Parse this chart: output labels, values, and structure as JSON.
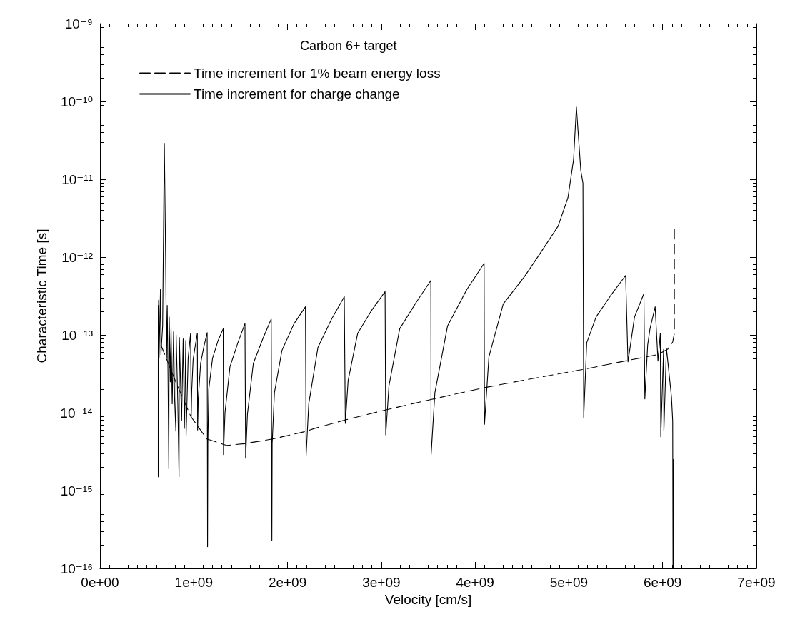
{
  "chart_data": {
    "type": "line",
    "xlabel": "Velocity [cm/s]",
    "ylabel": "Characteristic Time [s]",
    "legend_title": "Carbon 6+ target",
    "legend": "top left",
    "grid": false,
    "marker": "none",
    "log": "y",
    "xlim": [
      0,
      7000000000.0
    ],
    "xticks": [
      {
        "value": 0,
        "label": "0e+00"
      },
      {
        "value": 1000000000.0,
        "label": "1e+09"
      },
      {
        "value": 2000000000.0,
        "label": "2e+09"
      },
      {
        "value": 3000000000.0,
        "label": "3e+09"
      },
      {
        "value": 4000000000.0,
        "label": "4e+09"
      },
      {
        "value": 5000000000.0,
        "label": "5e+09"
      },
      {
        "value": 6000000000.0,
        "label": "6e+09"
      },
      {
        "value": 7000000000.0,
        "label": "7e+09"
      }
    ],
    "ylim": [
      1e-16,
      1e-09
    ],
    "yticks": [
      {
        "value": 1e-16,
        "label": "10⁻¹⁶"
      },
      {
        "value": 1e-15,
        "label": "10⁻¹⁵"
      },
      {
        "value": 1e-14,
        "label": "10⁻¹⁴"
      },
      {
        "value": 1e-13,
        "label": "10⁻¹³"
      },
      {
        "value": 1e-12,
        "label": "10⁻¹²"
      },
      {
        "value": 1e-11,
        "label": "10⁻¹¹"
      },
      {
        "value": 1e-10,
        "label": "10⁻¹⁰"
      },
      {
        "value": 1e-09,
        "label": "10⁻⁹"
      }
    ],
    "series": [
      {
        "name": "Time increment for 1% beam energy loss",
        "color": "#000000",
        "line_style": "dashed",
        "x": [
          650000000.0,
          820000000.0,
          970000000.0,
          1140000000.0,
          1350000000.0,
          1540000000.0,
          1840000000.0,
          2180000000.0,
          2290000000.0,
          2620000000.0,
          3050000000.0,
          3530000000.0,
          4100000000.0,
          4550000000.0,
          5153000000.0,
          5630000000.0,
          5954000000.0,
          6056000000.0,
          6107000000.0,
          6125000000.0,
          6125000000.0
        ],
        "values": [
          7.4e-14,
          2.3e-14,
          8.9e-15,
          4.6e-15,
          3.8e-15,
          4e-15,
          4.6e-15,
          5.7e-15,
          6.3e-15,
          8.1e-15,
          1.09e-14,
          1.48e-14,
          2.1e-14,
          2.66e-14,
          3.6e-14,
          4.7e-14,
          5.6e-14,
          6.6e-14,
          8.1e-14,
          1.05e-13,
          2.5e-12
        ]
      },
      {
        "name": "Time increment for charge change",
        "color": "#000000",
        "line_style": "solid",
        "x": [
          621000000.0,
          621000000.0,
          625000000.0,
          630000000.0,
          645000000.0,
          650000000.0,
          668000000.0,
          686000000.0,
          700000000.0,
          710000000.0,
          717000000.0,
          725000000.0,
          734000000.0,
          738000000.0,
          750000000.0,
          758000000.0,
          770000000.0,
          785000000.0,
          795000000.0,
          809000000.0,
          812000000.0,
          830000000.0,
          843000000.0,
          846000000.0,
          870000000.0,
          887000000.0,
          900000000.0,
          915000000.0,
          918000000.0,
          940000000.0,
          966000000.0,
          973000000.0,
          978000000.0,
          993000000.0,
          1017000000.0,
          1038000000.0,
          1041000000.0,
          1048000000.0,
          1073000000.0,
          1109000000.0,
          1143000000.0,
          1147000000.0,
          1150000000.0,
          1160000000.0,
          1200000000.0,
          1260000000.0,
          1314000000.0,
          1317000000.0,
          1333000000.0,
          1386000000.0,
          1470000000.0,
          1546000000.0,
          1553000000.0,
          1572000000.0,
          1635000000.0,
          1736000000.0,
          1826000000.0,
          1833000000.0,
          1836000000.0,
          1860000000.0,
          1940000000.0,
          2070000000.0,
          2191000000.0,
          2198000000.0,
          2226000000.0,
          2324000000.0,
          2470000000.0,
          2605000000.0,
          2616000000.0,
          2646000000.0,
          2748000000.0,
          2900000000.0,
          3040000000.0,
          3047000000.0,
          3081000000.0,
          3196000000.0,
          3370000000.0,
          3528000000.0,
          3531000000.0,
          3571000000.0,
          3706000000.0,
          3910000000.0,
          4096000000.0,
          4100000000.0,
          4147000000.0,
          4300000000.0,
          4530000000.0,
          4730000000.0,
          4885000000.0,
          4990000000.0,
          5050000000.0,
          5080000000.0,
          5127000000.0,
          5150000000.0,
          5158000000.0,
          5190000000.0,
          5290000000.0,
          5445000000.0,
          5605000000.0,
          5630000000.0,
          5700000000.0,
          5800000000.0,
          5810000000.0,
          5840000000.0,
          5865000000.0,
          5920000000.0,
          5950000000.0,
          5975000000.0,
          5980000000.0,
          6010000000.0,
          6013000000.0,
          6040000000.0,
          6094000000.0,
          6107000000.0,
          6110000000.0,
          6112000000.0,
          6114000000.0,
          6116000000.0,
          6118000000.0
        ],
        "values": [
          2.4e-13,
          1.5e-15,
          2.8e-13,
          5.1e-14,
          3.9e-13,
          5.6e-14,
          1.3e-13,
          2.9e-11,
          1e-12,
          5e-14,
          2.4e-13,
          3.2e-14,
          1.9e-15,
          1.7e-13,
          2.5e-14,
          1.2e-13,
          1.3e-14,
          1.1e-13,
          1.6e-14,
          5.8e-15,
          1e-13,
          1.3e-14,
          1.5e-15,
          9.3e-14,
          7.9e-15,
          8.9e-14,
          6.3e-15,
          8.5e-14,
          5e-15,
          5e-14,
          1.05e-13,
          8.9e-15,
          1.9e-14,
          4.8e-14,
          7.4e-14,
          1.05e-13,
          6e-15,
          1.5e-14,
          4.3e-14,
          7.2e-14,
          1.07e-13,
          1.9e-16,
          4e-15,
          2e-14,
          5e-14,
          8.5e-14,
          1.2e-13,
          2.9e-15,
          1e-14,
          3.9e-14,
          7.9e-14,
          1.4e-13,
          2.6e-15,
          9.5e-15,
          4.3e-14,
          8.9e-14,
          1.6e-13,
          2.3e-16,
          4e-15,
          1.8e-14,
          6.3e-14,
          1.4e-13,
          2.3e-13,
          2.8e-15,
          1.3e-14,
          6.9e-14,
          1.6e-13,
          3.1e-13,
          7.3e-15,
          2.6e-14,
          1.05e-13,
          2.1e-13,
          3.6e-13,
          5.2e-15,
          2.2e-14,
          1.2e-13,
          2.6e-13,
          5e-13,
          2.9e-15,
          1.8e-14,
          1.3e-13,
          3.8e-13,
          8.3e-13,
          7.1e-15,
          5.2e-14,
          2.5e-13,
          5.7e-13,
          1.3e-12,
          2.5e-12,
          5.8e-12,
          1.8e-11,
          8.5e-11,
          1.3e-11,
          8.9e-12,
          8.7e-15,
          7.9e-14,
          1.7e-13,
          3.2e-13,
          5.8e-13,
          4.5e-14,
          1.7e-13,
          3.4e-13,
          1.5e-14,
          7.4e-14,
          1.2e-13,
          2.3e-13,
          4.6e-14,
          1.05e-13,
          4.9e-15,
          6.5e-14,
          5.8e-15,
          6.8e-14,
          1.6e-14,
          7.8e-15,
          1e-16,
          2.5e-15,
          1e-16,
          6.3e-16,
          1e-16
        ]
      }
    ]
  }
}
